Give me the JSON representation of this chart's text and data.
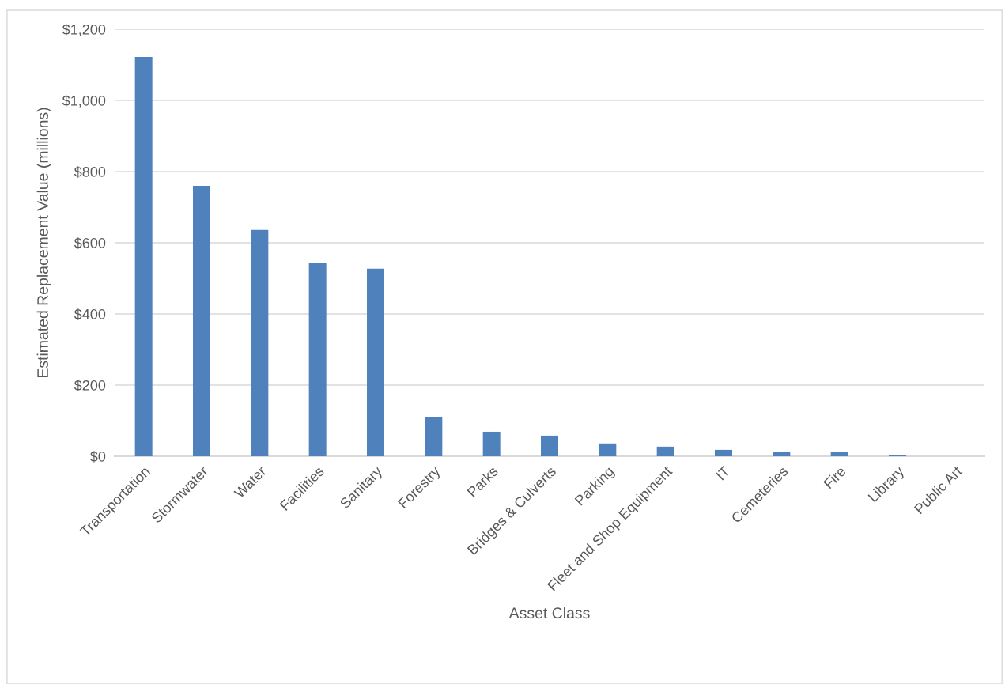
{
  "chart_data": {
    "type": "bar",
    "xlabel": "Asset Class",
    "ylabel": "Estimated Replacement Value (millions)",
    "categories": [
      "Transportation",
      "Stormwater",
      "Water",
      "Facilities",
      "Sanitary",
      "Forestry",
      "Parks",
      "Bridges & Culverts",
      "Parking",
      "Fleet and Shop Equipment",
      "IT",
      "Cemeteries",
      "Fire",
      "Library",
      "Public Art"
    ],
    "values": [
      1122,
      760,
      636,
      542,
      527,
      111,
      69,
      58,
      36,
      27,
      18,
      13,
      13,
      4,
      0
    ],
    "color": "#4f81bd",
    "ylim": [
      0,
      1200
    ],
    "yticks": [
      {
        "value": 0,
        "label": "$0"
      },
      {
        "value": 200,
        "label": "$200"
      },
      {
        "value": 400,
        "label": "$400"
      },
      {
        "value": 600,
        "label": "$600"
      },
      {
        "value": 800,
        "label": "$800"
      },
      {
        "value": 1000,
        "label": "$1,000"
      },
      {
        "value": 1200,
        "label": "$1,200"
      }
    ],
    "grid": "y",
    "legend": false
  }
}
